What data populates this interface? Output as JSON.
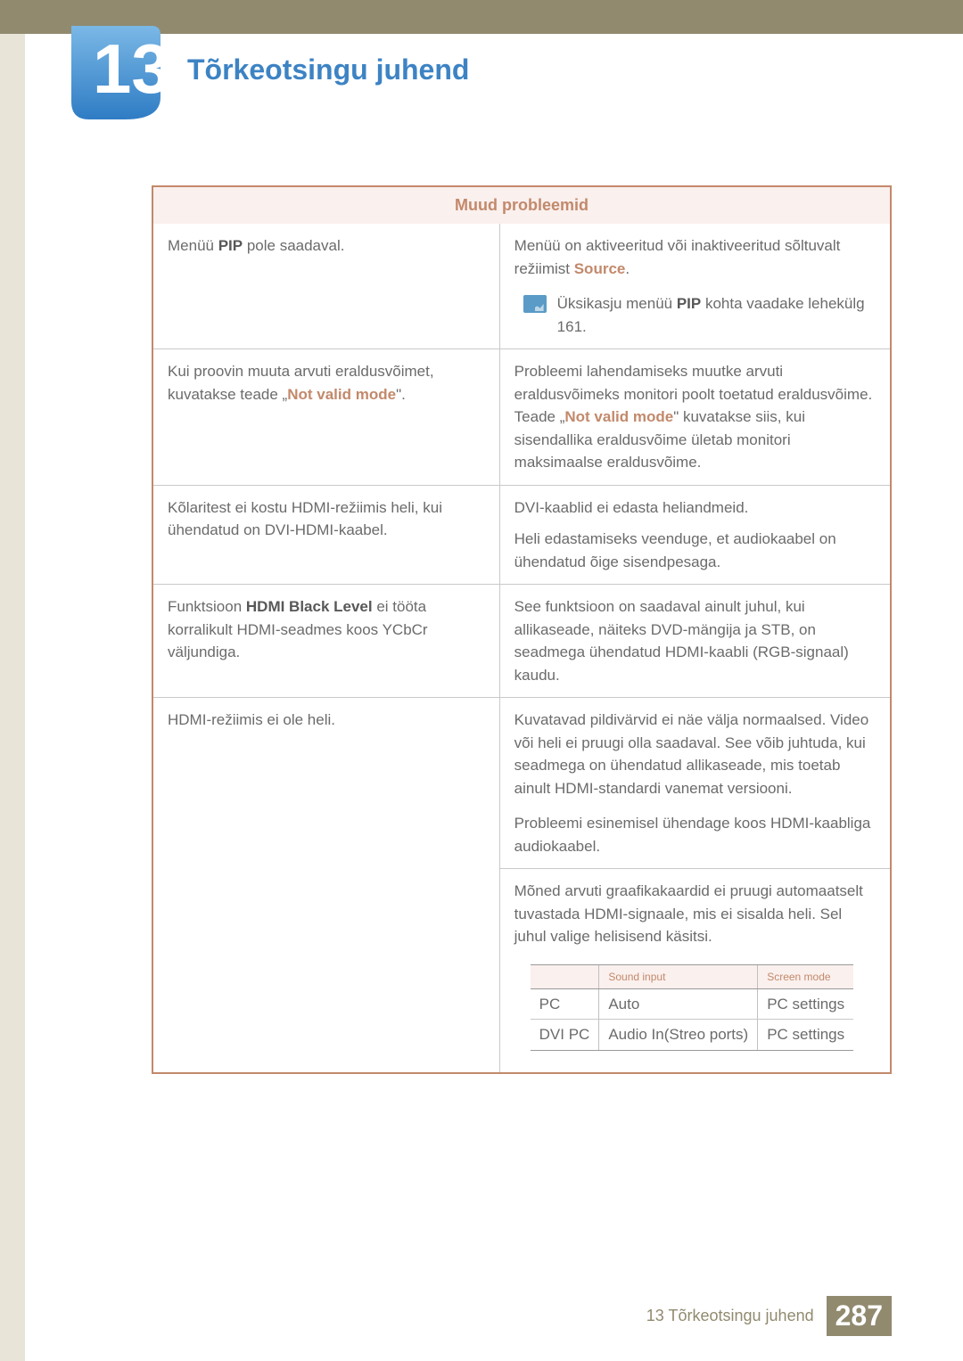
{
  "chapter_number": "13",
  "page_title": "Tõrkeotsingu juhend",
  "table_header": "Muud probleemid",
  "rows": [
    {
      "left_parts": [
        {
          "text": "Menüü ",
          "type": "normal"
        },
        {
          "text": "PIP",
          "type": "bold"
        },
        {
          "text": " pole saadaval.",
          "type": "normal"
        }
      ],
      "right_parts": [
        {
          "text": "Menüü on aktiveeritud või inaktiveeritud sõltuvalt režiimist ",
          "type": "normal"
        },
        {
          "text": "Source",
          "type": "highlight"
        },
        {
          "text": ".",
          "type": "normal"
        }
      ],
      "note_parts": [
        {
          "text": "Üksikasju menüü ",
          "type": "normal"
        },
        {
          "text": "PIP",
          "type": "bold"
        },
        {
          "text": " kohta vaadake lehekülg 161.",
          "type": "normal"
        }
      ]
    },
    {
      "left_parts": [
        {
          "text": "Kui proovin muuta arvuti eraldusvõimet, kuvatakse teade „",
          "type": "normal"
        },
        {
          "text": "Not valid mode",
          "type": "highlight"
        },
        {
          "text": "\".",
          "type": "normal"
        }
      ],
      "right_parts": [
        {
          "text": "Probleemi lahendamiseks muutke arvuti eraldusvõimeks monitori poolt toetatud eraldusvõime. Teade „",
          "type": "normal"
        },
        {
          "text": "Not valid mode",
          "type": "highlight"
        },
        {
          "text": "\" kuvatakse siis, kui sisendallika eraldusvõime ületab monitori maksimaalse eraldusvõime.",
          "type": "normal"
        }
      ]
    },
    {
      "left_parts": [
        {
          "text": "Kõlaritest ei kostu HDMI-režiimis heli, kui ühendatud on DVI-HDMI-kaabel.",
          "type": "normal"
        }
      ],
      "right_main": "DVI-kaablid ei edasta heliandmeid.",
      "right_sub": "Heli edastamiseks veenduge, et audiokaabel on ühendatud õige sisendpesaga."
    },
    {
      "left_parts": [
        {
          "text": "Funktsioon ",
          "type": "normal"
        },
        {
          "text": "HDMI Black Level",
          "type": "bold"
        },
        {
          "text": " ei tööta korralikult HDMI-seadmes koos YCbCr väljundiga.",
          "type": "normal"
        }
      ],
      "right_parts": [
        {
          "text": "See funktsioon on saadaval ainult juhul, kui allikaseade, näiteks DVD-mängija ja STB, on seadmega ühendatud HDMI-kaabli (RGB-signaal) kaudu.",
          "type": "normal"
        }
      ]
    },
    {
      "left_parts": [
        {
          "text": "HDMI-režiimis ei ole heli.",
          "type": "normal"
        }
      ],
      "right_blocks": [
        "Kuvatavad pildivärvid ei näe välja normaalsed. Video või heli ei pruugi olla saadaval. See võib juhtuda, kui seadmega on ühendatud allikaseade, mis toetab ainult HDMI-standardi vanemat versiooni.",
        "Probleemi esinemisel ühendage koos HDMI-kaabliga audiokaabel."
      ],
      "right_second_block": "Mõned arvuti graafikakaardid ei pruugi automaatselt tuvastada HDMI-signaale, mis ei sisalda heli. Sel juhul valige helisisend käsitsi.",
      "mini_table": {
        "headers": [
          "",
          "Sound input",
          "Screen mode"
        ],
        "rows": [
          [
            "PC",
            "Auto",
            "PC settings"
          ],
          [
            "DVI PC",
            "Audio In(Streo ports)",
            "PC settings"
          ]
        ]
      }
    }
  ],
  "footer_text": "13 Tõrkeotsingu juhend",
  "page_number": "287"
}
